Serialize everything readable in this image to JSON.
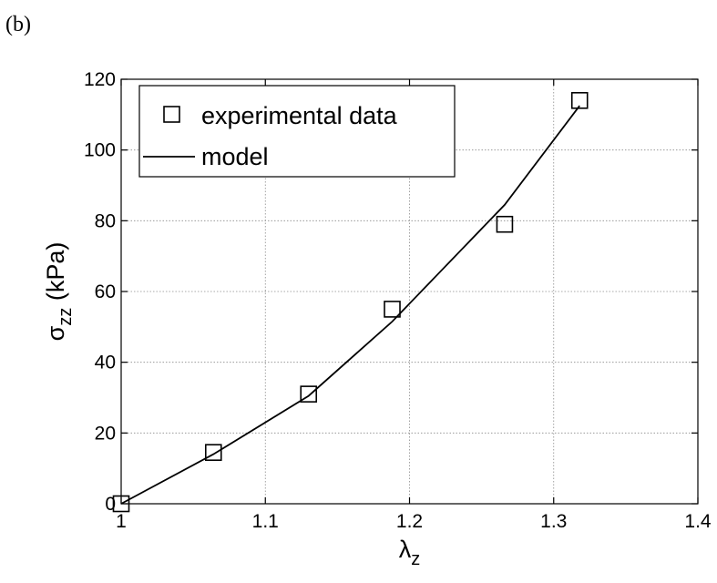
{
  "panel_label": "(b)",
  "chart_data": {
    "type": "line",
    "xlabel": "λ",
    "xlabel_sub": "z",
    "ylabel": "σ",
    "ylabel_sub": "zz",
    "ylabel_unit": " (kPa)",
    "xlim": [
      1,
      1.4
    ],
    "ylim": [
      0,
      120
    ],
    "xticks": [
      1,
      1.1,
      1.2,
      1.3,
      1.4
    ],
    "xtick_labels": [
      "1",
      "1.1",
      "1.2",
      "1.3",
      "1.4"
    ],
    "yticks": [
      0,
      20,
      40,
      60,
      80,
      100,
      120
    ],
    "ytick_labels": [
      "0",
      "20",
      "40",
      "60",
      "80",
      "100",
      "120"
    ],
    "grid": true,
    "legend_position": "top-left",
    "series": [
      {
        "name": "experimental data",
        "style": "markers",
        "marker": "square",
        "color": "#000000",
        "x": [
          1.0,
          1.064,
          1.13,
          1.188,
          1.266,
          1.318
        ],
        "y": [
          0,
          14.5,
          31,
          55,
          79,
          114
        ]
      },
      {
        "name": "model",
        "style": "line",
        "color": "#000000",
        "x": [
          1.0,
          1.064,
          1.13,
          1.188,
          1.266,
          1.318
        ],
        "y": [
          0,
          14,
          30.5,
          51.5,
          84.5,
          112.5
        ]
      }
    ]
  }
}
